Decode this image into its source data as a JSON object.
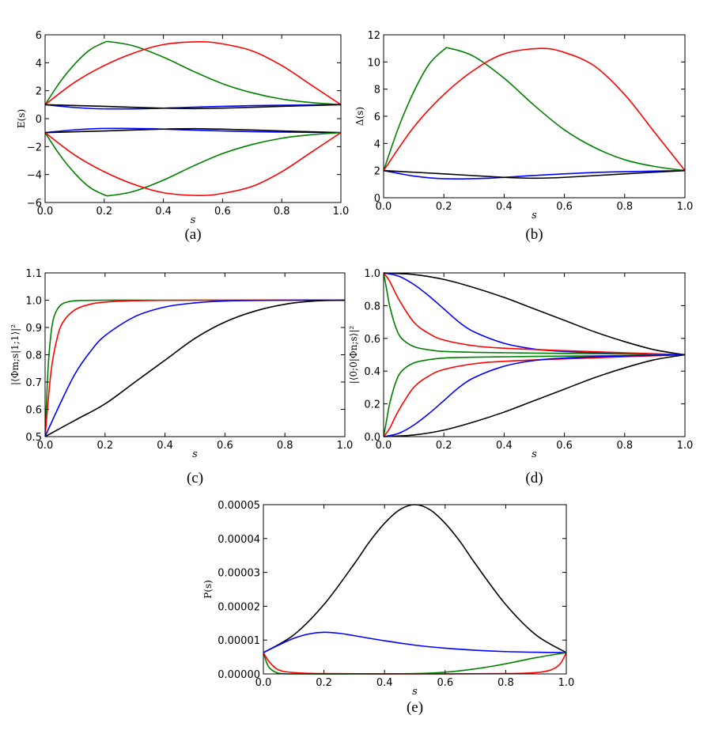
{
  "chart_data": [
    {
      "id": "a",
      "type": "line",
      "caption": "(a)",
      "xlabel": "s",
      "ylabel": "E(s)",
      "xlim": [
        0,
        1
      ],
      "ylim": [
        -6,
        6
      ],
      "xticks": [
        "0.0",
        "0.2",
        "0.4",
        "0.6",
        "0.8",
        "1.0"
      ],
      "yticks": [
        "6",
        "4",
        "2",
        "0",
        "−2",
        "−4",
        "−6"
      ],
      "series": [
        {
          "color": "#008000",
          "x": [
            0,
            0.05,
            0.1,
            0.15,
            0.2,
            0.22,
            0.3,
            0.4,
            0.5,
            0.6,
            0.7,
            0.8,
            0.9,
            1.0
          ],
          "y": [
            1,
            2.6,
            3.9,
            4.9,
            5.45,
            5.5,
            5.2,
            4.4,
            3.4,
            2.5,
            1.85,
            1.4,
            1.15,
            1.0
          ]
        },
        {
          "color": "#ff0000",
          "x": [
            0,
            0.1,
            0.2,
            0.3,
            0.4,
            0.52,
            0.6,
            0.7,
            0.8,
            0.9,
            1.0
          ],
          "y": [
            1,
            2.6,
            3.8,
            4.7,
            5.3,
            5.5,
            5.35,
            4.85,
            3.8,
            2.4,
            1.0
          ]
        },
        {
          "color": "#0000ff",
          "x": [
            0,
            0.1,
            0.2,
            0.35,
            0.5,
            0.7,
            0.9,
            1.0
          ],
          "y": [
            1,
            0.8,
            0.7,
            0.72,
            0.82,
            0.93,
            0.98,
            1.0
          ]
        },
        {
          "color": "#000000",
          "x": [
            0,
            0.2,
            0.4,
            0.5,
            0.6,
            0.8,
            1.0
          ],
          "y": [
            1,
            0.88,
            0.75,
            0.72,
            0.75,
            0.88,
            1.0
          ]
        },
        {
          "color": "#0000ff",
          "x": [
            0,
            0.1,
            0.2,
            0.35,
            0.5,
            0.7,
            0.9,
            1.0
          ],
          "y": [
            -1,
            -0.8,
            -0.7,
            -0.72,
            -0.82,
            -0.93,
            -0.98,
            -1.0
          ]
        },
        {
          "color": "#000000",
          "x": [
            0,
            0.2,
            0.4,
            0.5,
            0.6,
            0.8,
            1.0
          ],
          "y": [
            -1,
            -0.88,
            -0.75,
            -0.72,
            -0.75,
            -0.88,
            -1.0
          ]
        },
        {
          "color": "#008000",
          "x": [
            0,
            0.05,
            0.1,
            0.15,
            0.2,
            0.22,
            0.3,
            0.4,
            0.5,
            0.6,
            0.7,
            0.8,
            0.9,
            1.0
          ],
          "y": [
            -1,
            -2.6,
            -3.9,
            -4.9,
            -5.45,
            -5.5,
            -5.2,
            -4.4,
            -3.4,
            -2.5,
            -1.85,
            -1.4,
            -1.15,
            -1.0
          ]
        },
        {
          "color": "#ff0000",
          "x": [
            0,
            0.1,
            0.2,
            0.3,
            0.4,
            0.52,
            0.6,
            0.7,
            0.8,
            0.9,
            1.0
          ],
          "y": [
            -1,
            -2.6,
            -3.8,
            -4.7,
            -5.3,
            -5.5,
            -5.35,
            -4.85,
            -3.8,
            -2.4,
            -1.0
          ]
        }
      ]
    },
    {
      "id": "b",
      "type": "line",
      "caption": "(b)",
      "xlabel": "s",
      "ylabel": "Δ(s)",
      "xlim": [
        0,
        1
      ],
      "ylim": [
        0,
        12
      ],
      "xticks": [
        "0.0",
        "0.2",
        "0.4",
        "0.6",
        "0.8",
        "1.0"
      ],
      "yticks": [
        "12",
        "10",
        "8",
        "6",
        "4",
        "2",
        "0"
      ],
      "series": [
        {
          "color": "#008000",
          "x": [
            0,
            0.05,
            0.1,
            0.15,
            0.2,
            0.22,
            0.3,
            0.4,
            0.5,
            0.6,
            0.7,
            0.8,
            0.9,
            1.0
          ],
          "y": [
            2,
            5.2,
            7.8,
            9.8,
            10.9,
            11.0,
            10.4,
            8.8,
            6.8,
            5.0,
            3.7,
            2.8,
            2.3,
            2.0
          ]
        },
        {
          "color": "#ff0000",
          "x": [
            0,
            0.1,
            0.2,
            0.3,
            0.4,
            0.52,
            0.6,
            0.7,
            0.8,
            0.9,
            1.0
          ],
          "y": [
            2,
            5.2,
            7.6,
            9.4,
            10.6,
            11.0,
            10.7,
            9.7,
            7.6,
            4.8,
            2.0
          ]
        },
        {
          "color": "#0000ff",
          "x": [
            0,
            0.1,
            0.2,
            0.35,
            0.5,
            0.7,
            0.9,
            1.0
          ],
          "y": [
            2,
            1.6,
            1.4,
            1.44,
            1.64,
            1.86,
            1.96,
            2.0
          ]
        },
        {
          "color": "#000000",
          "x": [
            0,
            0.2,
            0.4,
            0.5,
            0.6,
            0.8,
            1.0
          ],
          "y": [
            2,
            1.76,
            1.5,
            1.44,
            1.5,
            1.76,
            2.0
          ]
        }
      ]
    },
    {
      "id": "c",
      "type": "line",
      "caption": "(c)",
      "xlabel": "s",
      "ylabel": "|⟨Φm;s|1;1⟩|²",
      "xlim": [
        0,
        1
      ],
      "ylim": [
        0.5,
        1.1
      ],
      "xticks": [
        "0.0",
        "0.2",
        "0.4",
        "0.6",
        "0.8",
        "1.0"
      ],
      "yticks": [
        "1.1",
        "1.0",
        "0.9",
        "0.8",
        "0.7",
        "0.6",
        "0.5"
      ],
      "series": [
        {
          "color": "#008000",
          "x": [
            0,
            0.01,
            0.02,
            0.03,
            0.05,
            0.08,
            0.12,
            0.2,
            0.4,
            1.0
          ],
          "y": [
            0.5,
            0.75,
            0.88,
            0.94,
            0.98,
            0.995,
            0.999,
            1.0,
            1.0,
            1.0
          ]
        },
        {
          "color": "#ff0000",
          "x": [
            0,
            0.02,
            0.04,
            0.06,
            0.1,
            0.15,
            0.2,
            0.3,
            0.5,
            1.0
          ],
          "y": [
            0.5,
            0.74,
            0.86,
            0.92,
            0.965,
            0.985,
            0.993,
            0.998,
            1.0,
            1.0
          ]
        },
        {
          "color": "#0000ff",
          "x": [
            0,
            0.05,
            0.1,
            0.15,
            0.2,
            0.3,
            0.4,
            0.5,
            0.6,
            0.8,
            1.0
          ],
          "y": [
            0.5,
            0.62,
            0.73,
            0.81,
            0.87,
            0.94,
            0.975,
            0.99,
            0.997,
            1.0,
            1.0
          ]
        },
        {
          "color": "#000000",
          "x": [
            0,
            0.1,
            0.2,
            0.3,
            0.4,
            0.5,
            0.6,
            0.7,
            0.8,
            0.9,
            1.0
          ],
          "y": [
            0.5,
            0.56,
            0.62,
            0.7,
            0.78,
            0.86,
            0.92,
            0.96,
            0.985,
            0.997,
            1.0
          ]
        }
      ]
    },
    {
      "id": "d",
      "type": "line",
      "caption": "(d)",
      "xlabel": "s",
      "ylabel": "|⟨0;0|Φn;s⟩|²",
      "xlim": [
        0,
        1
      ],
      "ylim": [
        0,
        1
      ],
      "xticks": [
        "0.0",
        "0.2",
        "0.4",
        "0.6",
        "0.8",
        "1.0"
      ],
      "yticks": [
        "1.0",
        "0.8",
        "0.6",
        "0.4",
        "0.2",
        "0.0"
      ],
      "series": [
        {
          "color": "#000000",
          "x": [
            0,
            0.1,
            0.2,
            0.3,
            0.4,
            0.5,
            0.6,
            0.7,
            0.8,
            0.9,
            1.0
          ],
          "y": [
            1.0,
            0.99,
            0.96,
            0.91,
            0.85,
            0.78,
            0.71,
            0.64,
            0.58,
            0.53,
            0.5
          ]
        },
        {
          "color": "#0000ff",
          "x": [
            0,
            0.05,
            0.1,
            0.15,
            0.2,
            0.25,
            0.3,
            0.4,
            0.5,
            0.6,
            0.8,
            1.0
          ],
          "y": [
            1.0,
            0.98,
            0.93,
            0.86,
            0.78,
            0.7,
            0.64,
            0.57,
            0.535,
            0.52,
            0.507,
            0.5
          ]
        },
        {
          "color": "#ff0000",
          "x": [
            0,
            0.02,
            0.05,
            0.1,
            0.15,
            0.2,
            0.3,
            0.4,
            0.6,
            0.8,
            1.0
          ],
          "y": [
            1.0,
            0.95,
            0.84,
            0.7,
            0.63,
            0.59,
            0.555,
            0.54,
            0.525,
            0.512,
            0.5
          ]
        },
        {
          "color": "#008000",
          "x": [
            0,
            0.01,
            0.02,
            0.04,
            0.06,
            0.1,
            0.15,
            0.2,
            0.3,
            0.5,
            0.8,
            1.0
          ],
          "y": [
            1.0,
            0.9,
            0.8,
            0.67,
            0.6,
            0.55,
            0.53,
            0.52,
            0.515,
            0.51,
            0.505,
            0.5
          ]
        },
        {
          "color": "#008000",
          "x": [
            0,
            0.01,
            0.02,
            0.04,
            0.06,
            0.1,
            0.15,
            0.2,
            0.3,
            0.5,
            0.8,
            1.0
          ],
          "y": [
            0.0,
            0.1,
            0.2,
            0.33,
            0.4,
            0.45,
            0.47,
            0.48,
            0.485,
            0.49,
            0.495,
            0.5
          ]
        },
        {
          "color": "#ff0000",
          "x": [
            0,
            0.02,
            0.05,
            0.1,
            0.15,
            0.2,
            0.3,
            0.4,
            0.6,
            0.8,
            1.0
          ],
          "y": [
            0.0,
            0.05,
            0.16,
            0.3,
            0.37,
            0.41,
            0.445,
            0.46,
            0.475,
            0.488,
            0.5
          ]
        },
        {
          "color": "#0000ff",
          "x": [
            0,
            0.05,
            0.1,
            0.15,
            0.2,
            0.25,
            0.3,
            0.4,
            0.5,
            0.6,
            0.8,
            1.0
          ],
          "y": [
            0.0,
            0.02,
            0.07,
            0.14,
            0.22,
            0.3,
            0.36,
            0.43,
            0.465,
            0.48,
            0.493,
            0.5
          ]
        },
        {
          "color": "#000000",
          "x": [
            0,
            0.1,
            0.2,
            0.3,
            0.4,
            0.5,
            0.6,
            0.7,
            0.8,
            0.9,
            1.0
          ],
          "y": [
            0.0,
            0.01,
            0.04,
            0.09,
            0.15,
            0.22,
            0.29,
            0.36,
            0.42,
            0.47,
            0.5
          ]
        }
      ]
    },
    {
      "id": "e",
      "type": "line",
      "caption": "(e)",
      "xlabel": "s",
      "ylabel": "P(s)",
      "xlim": [
        0,
        1
      ],
      "ylim": [
        0,
        5e-05
      ],
      "xticks": [
        "0.0",
        "0.2",
        "0.4",
        "0.6",
        "0.8",
        "1.0"
      ],
      "yticks": [
        "0.00005",
        "0.00004",
        "0.00003",
        "0.00002",
        "0.00001",
        "0.00000"
      ],
      "series": [
        {
          "color": "#000000",
          "x": [
            0,
            0.1,
            0.2,
            0.3,
            0.35,
            0.4,
            0.45,
            0.5,
            0.55,
            0.6,
            0.65,
            0.7,
            0.8,
            0.9,
            1.0
          ],
          "y": [
            6.3e-06,
            1.15e-05,
            2.05e-05,
            3.25e-05,
            3.9e-05,
            4.45e-05,
            4.85e-05,
            5e-05,
            4.85e-05,
            4.45e-05,
            3.9e-05,
            3.25e-05,
            2.05e-05,
            1.15e-05,
            6.3e-06
          ]
        },
        {
          "color": "#0000ff",
          "x": [
            0,
            0.05,
            0.1,
            0.15,
            0.2,
            0.25,
            0.3,
            0.4,
            0.5,
            0.6,
            0.7,
            0.8,
            0.9,
            1.0
          ],
          "y": [
            6.3e-06,
            8.5e-06,
            1.05e-05,
            1.18e-05,
            1.23e-05,
            1.2e-05,
            1.13e-05,
            9.8e-06,
            8.5e-06,
            7.6e-06,
            7e-06,
            6.6e-06,
            6.4e-06,
            6.3e-06
          ]
        },
        {
          "color": "#008000",
          "x": [
            0,
            0.01,
            0.02,
            0.04,
            0.06,
            0.1,
            0.3,
            0.5,
            0.6,
            0.7,
            0.8,
            0.9,
            1.0
          ],
          "y": [
            6.3e-06,
            3.5e-06,
            1.8e-06,
            5e-07,
            1e-07,
            0.0,
            0.0,
            1e-07,
            5e-07,
            1.5e-06,
            3e-06,
            4.8e-06,
            6.3e-06
          ]
        },
        {
          "color": "#ff0000",
          "x": [
            0,
            0.02,
            0.05,
            0.1,
            0.2,
            0.5,
            0.8,
            0.9,
            0.95,
            0.98,
            1.0
          ],
          "y": [
            6.3e-06,
            3.5e-06,
            1.2e-06,
            4e-07,
            1e-07,
            0.0,
            1e-07,
            4e-07,
            1.2e-06,
            3e-06,
            6.3e-06
          ]
        }
      ]
    }
  ]
}
